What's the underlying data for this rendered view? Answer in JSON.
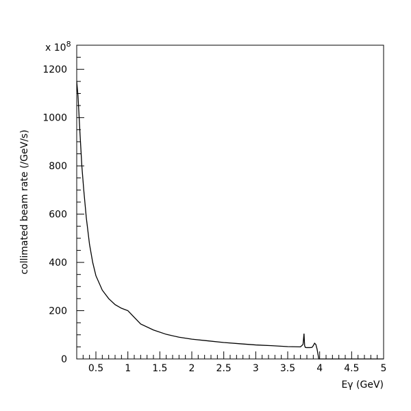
{
  "chart_data": {
    "type": "line",
    "title": "",
    "xlabel": "Eγ (GeV)",
    "ylabel": "collimated beam rate (/GeV/s)",
    "y_multiplier_label": "x 10",
    "y_multiplier_exponent": "8",
    "xlim": [
      0.2,
      5.0
    ],
    "ylim": [
      0,
      1300
    ],
    "grid": false,
    "x_major_ticks": [
      0.5,
      1,
      1.5,
      2,
      2.5,
      3,
      3.5,
      4,
      4.5,
      5
    ],
    "x_tick_labels": [
      "0.5",
      "1",
      "1.5",
      "2",
      "2.5",
      "3",
      "3.5",
      "4",
      "4.5",
      "5"
    ],
    "y_major_ticks": [
      0,
      200,
      400,
      600,
      800,
      1000,
      1200
    ],
    "y_tick_labels": [
      "0",
      "200",
      "400",
      "600",
      "800",
      "1000",
      "1200"
    ],
    "series": [
      {
        "x": [
          0.2,
          0.22,
          0.25,
          0.28,
          0.31,
          0.35,
          0.4,
          0.45,
          0.5,
          0.6,
          0.7,
          0.8,
          0.9,
          1.0,
          1.2,
          1.4,
          1.6,
          1.8,
          2.0,
          2.25,
          2.5,
          2.75,
          3.0,
          3.25,
          3.5,
          3.7,
          3.74,
          3.755,
          3.765,
          3.775,
          3.78,
          3.79,
          3.85,
          3.88,
          3.9,
          3.92,
          3.94,
          3.96,
          3.98,
          3.985,
          5.0
        ],
        "y": [
          1150,
          1090,
          940,
          800,
          700,
          585,
          475,
          400,
          345,
          285,
          250,
          225,
          210,
          200,
          145,
          120,
          102,
          90,
          82,
          75,
          68,
          63,
          58,
          55,
          51,
          50,
          60,
          105,
          55,
          48,
          48,
          47,
          47,
          48,
          55,
          65,
          60,
          40,
          10,
          0,
          0
        ]
      }
    ]
  }
}
